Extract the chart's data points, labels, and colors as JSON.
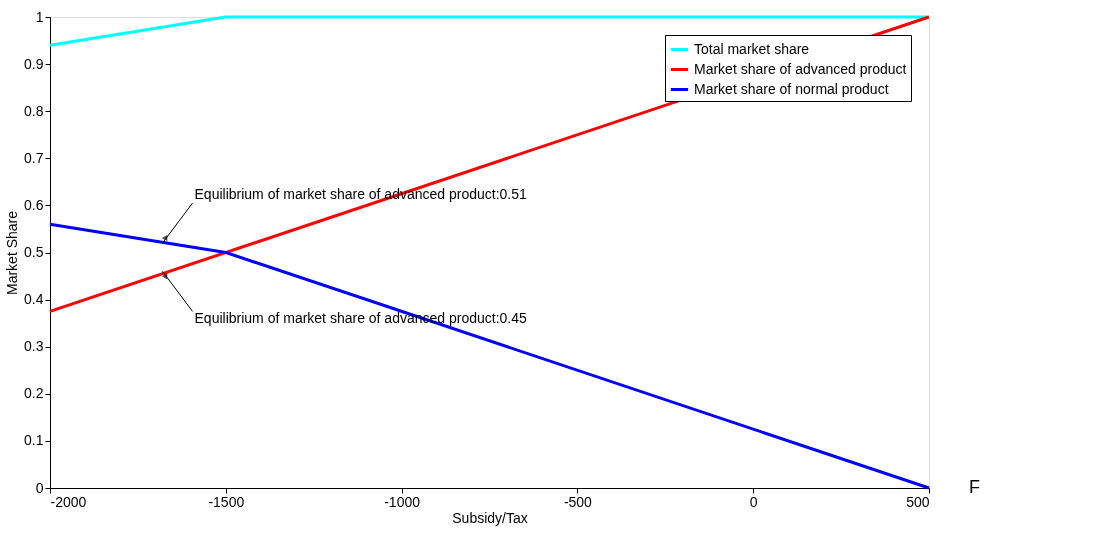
{
  "chart_data": {
    "type": "line",
    "xlabel": "Subsidy/Tax",
    "ylabel": "Market Share",
    "xlim": [
      -2000,
      500
    ],
    "xticks": [
      -2000,
      -1500,
      -1000,
      -500,
      0,
      500
    ],
    "ylim": [
      0,
      1
    ],
    "yticks": [
      0,
      0.1,
      0.2,
      0.3,
      0.4,
      0.5,
      0.6,
      0.7,
      0.8,
      0.9,
      1
    ],
    "grid": false,
    "legend": "top right",
    "marker": "none",
    "line_style": "solid",
    "series": [
      {
        "name": "Total market share",
        "color": "#00ffff",
        "x": [
          -2000,
          -1500,
          500
        ],
        "values": [
          0.94,
          1,
          1
        ]
      },
      {
        "name": "Market share of advanced product",
        "color": "#ff0000",
        "x": [
          -2000,
          500
        ],
        "values": [
          0.375,
          1
        ]
      },
      {
        "name": "Market share of normal product",
        "color": "#0000ff",
        "x": [
          -2000,
          -1500,
          500
        ],
        "values": [
          0.56,
          0.5,
          0
        ]
      }
    ],
    "annotations": [
      {
        "text": "Equilibrium of market share of advanced product:0.51",
        "x": -1680,
        "y": 0.52
      },
      {
        "text": "Equilibrium of market share of advanced product:0.45",
        "x": -1680,
        "y": 0.46
      },
      "F"
    ]
  }
}
